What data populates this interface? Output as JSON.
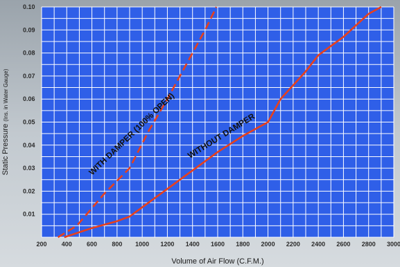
{
  "chart_data": {
    "type": "line",
    "xlabel": "Volume of Air Flow (C.F.M.)",
    "ylabel_main": "Static Pressure",
    "ylabel_sub": "(Ins. in Water Gauge)",
    "xlim": [
      200,
      3000
    ],
    "ylim": [
      0,
      0.1
    ],
    "x_ticks": [
      "200",
      "400",
      "600",
      "800",
      "1000",
      "1200",
      "1400",
      "1600",
      "1800",
      "2000",
      "2200",
      "2400",
      "2600",
      "2800",
      "3000"
    ],
    "y_ticks": [
      "0.01",
      "0.02",
      "0.03",
      "0.04",
      "0.05",
      "0.06",
      "0.07",
      "0.08",
      "0.09",
      "0.10"
    ],
    "grid": true,
    "series": [
      {
        "name": "WITH DAMPER (100% OPEN)",
        "line_style": "dashed",
        "color": "#e8401c",
        "x": [
          330,
          480,
          700,
          900,
          1050,
          1200,
          1350,
          1500,
          1590
        ],
        "y": [
          0.0,
          0.005,
          0.019,
          0.03,
          0.046,
          0.06,
          0.075,
          0.09,
          0.1
        ]
      },
      {
        "name": "WITHOUT DAMPER",
        "line_style": "solid",
        "color": "#e8401c",
        "x": [
          380,
          600,
          800,
          900,
          1000,
          1200,
          1400,
          1600,
          1800,
          2000,
          2100,
          2200,
          2300,
          2400,
          2500,
          2600,
          2700,
          2800,
          2900
        ],
        "y": [
          0.0,
          0.004,
          0.007,
          0.009,
          0.013,
          0.021,
          0.029,
          0.037,
          0.044,
          0.05,
          0.06,
          0.066,
          0.072,
          0.079,
          0.083,
          0.087,
          0.092,
          0.097,
          0.1
        ]
      }
    ]
  },
  "colors": {
    "grid_fill": "#2f5fe8",
    "grid_lines": "#ffffff",
    "series": "#e8401c"
  }
}
